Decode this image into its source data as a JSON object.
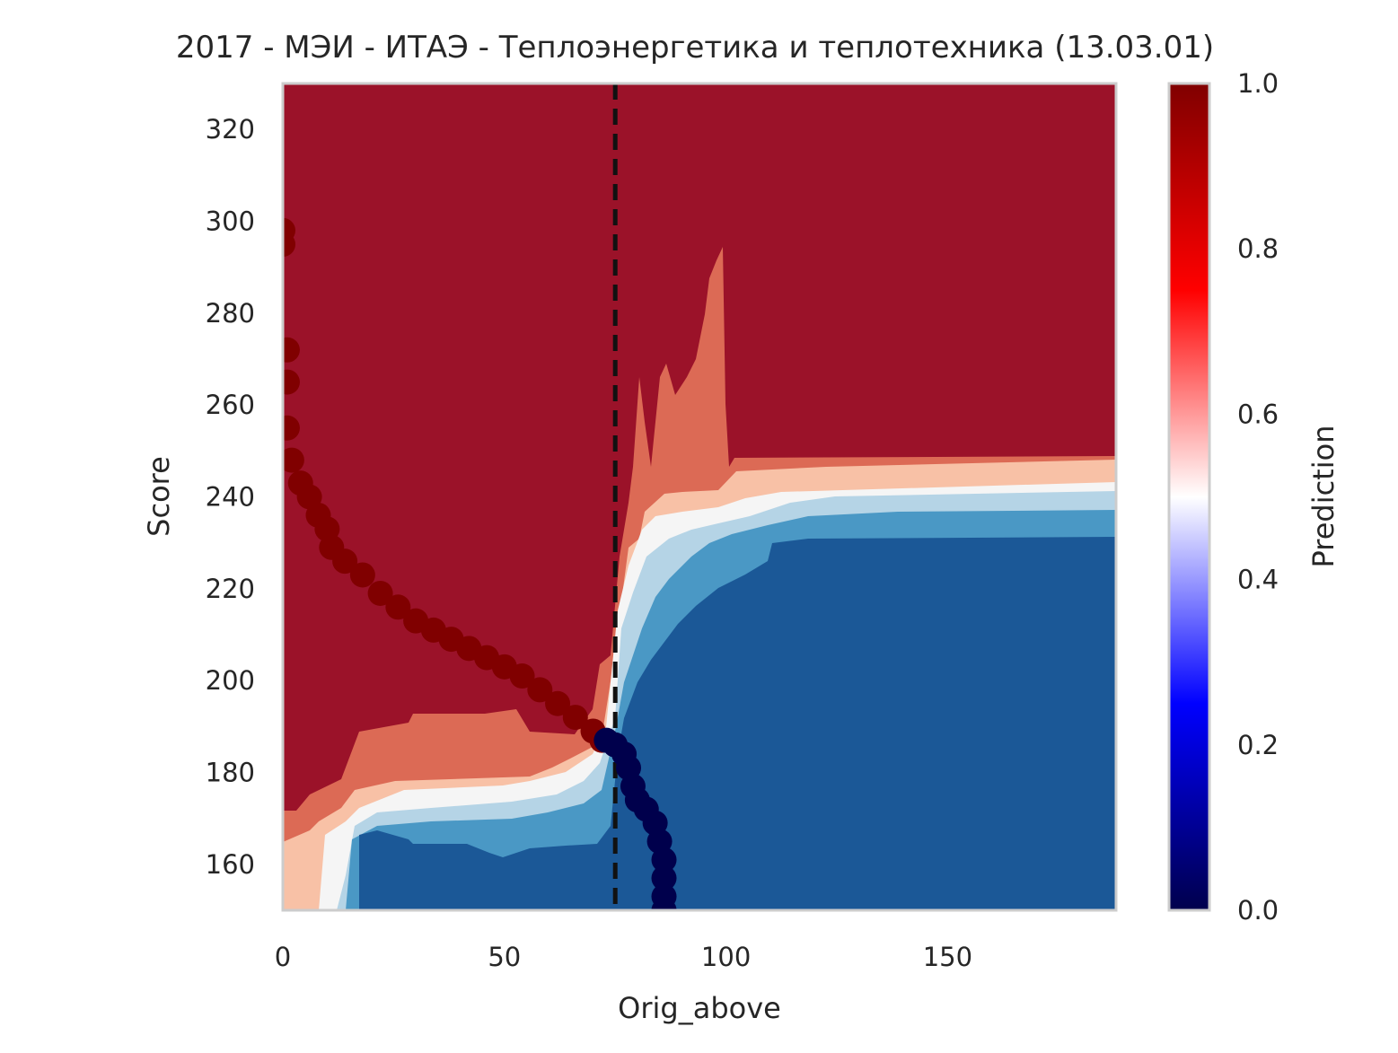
{
  "chart_data": {
    "type": "heatmap",
    "title": "2017 - МЭИ - ИТАЭ - Теплоэнергетика и теплотехника (13.03.01)",
    "xlabel": "Orig_above",
    "ylabel": "Score",
    "xlim": [
      0,
      188
    ],
    "ylim": [
      150,
      330
    ],
    "x_ticks": [
      0,
      50,
      100,
      150
    ],
    "y_ticks": [
      160,
      180,
      200,
      220,
      240,
      260,
      280,
      300,
      320
    ],
    "grid": false,
    "vline": {
      "x": 75,
      "style": "dashed",
      "color": "#111111"
    },
    "colorbar": {
      "label": "Prediction",
      "range": [
        0,
        1
      ],
      "ticks": [
        "0.0",
        "0.2",
        "0.4",
        "0.6",
        "0.8",
        "1.0"
      ],
      "colormap": "seismic"
    },
    "contour_levels": [
      {
        "range": "0.0-0.14",
        "color": "#1b5897"
      },
      {
        "range": "0.14-0.29",
        "color": "#4a98c5"
      },
      {
        "range": "0.29-0.43",
        "color": "#b5d4e6"
      },
      {
        "range": "0.43-0.57",
        "color": "#f5f5f5"
      },
      {
        "range": "0.57-0.71",
        "color": "#f8c1a6"
      },
      {
        "range": "0.71-0.86",
        "color": "#dc6a55"
      },
      {
        "range": "0.86-1.0",
        "color": "#9b1229"
      }
    ],
    "series": [
      {
        "name": "",
        "predicted_class": 1,
        "color": "#800000",
        "points": [
          [
            0,
            298
          ],
          [
            0,
            295
          ],
          [
            1,
            272
          ],
          [
            1,
            265
          ],
          [
            1,
            255
          ],
          [
            2,
            248
          ],
          [
            4,
            243
          ],
          [
            6,
            240
          ],
          [
            8,
            236
          ],
          [
            10,
            233
          ],
          [
            11,
            229
          ],
          [
            14,
            226
          ],
          [
            18,
            223
          ],
          [
            22,
            219
          ],
          [
            26,
            216
          ],
          [
            30,
            213
          ],
          [
            34,
            211
          ],
          [
            38,
            209
          ],
          [
            42,
            207
          ],
          [
            46,
            205
          ],
          [
            50,
            203
          ],
          [
            54,
            201
          ],
          [
            58,
            198
          ],
          [
            62,
            195
          ],
          [
            66,
            192
          ],
          [
            70,
            189
          ],
          [
            72,
            187
          ]
        ]
      },
      {
        "name": "",
        "predicted_class": 0,
        "color": "#00004c",
        "points": [
          [
            73,
            187
          ],
          [
            75,
            186
          ],
          [
            77,
            184
          ],
          [
            78,
            181
          ],
          [
            79,
            177
          ],
          [
            80,
            174
          ],
          [
            82,
            172
          ],
          [
            84,
            169
          ],
          [
            85,
            165
          ],
          [
            86,
            161
          ],
          [
            86,
            157
          ],
          [
            86,
            153
          ],
          [
            86,
            150
          ]
        ]
      }
    ]
  }
}
